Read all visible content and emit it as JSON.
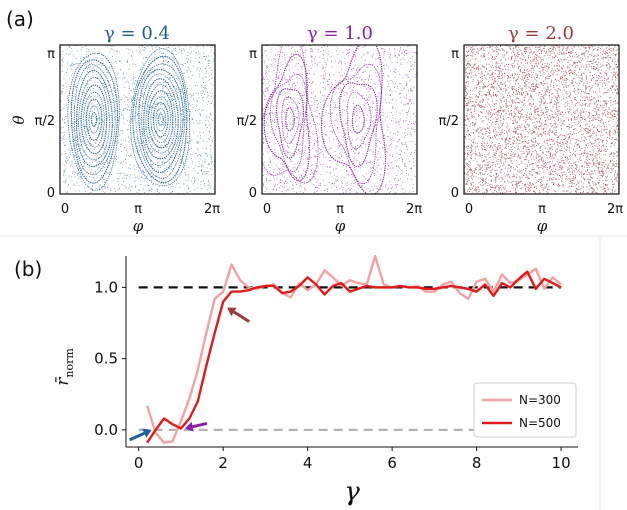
{
  "figure": {
    "panel_a_label": "(a)",
    "panel_b_label": "(b)"
  },
  "chart_data": [
    {
      "type": "scatter",
      "title": "γ = 0.4",
      "xlabel": "φ",
      "ylabel": "θ",
      "xticks": [
        "0",
        "π",
        "2π"
      ],
      "yticks": [
        "0",
        "π/2",
        "π"
      ],
      "xlim": [
        0,
        6.283
      ],
      "ylim": [
        0,
        3.1416
      ],
      "color": "#1f5f96",
      "gamma": 0.4,
      "regime": "regular orbits (islands around two fixed points)"
    },
    {
      "type": "scatter",
      "title": "γ = 1.0",
      "xlabel": "φ",
      "xticks": [
        "0",
        "π",
        "2π"
      ],
      "yticks": [
        "0",
        "π/2",
        "π"
      ],
      "xlim": [
        0,
        6.283
      ],
      "ylim": [
        0,
        3.1416
      ],
      "color": "#8a1fa8",
      "gamma": 1.0,
      "regime": "mixed phase space"
    },
    {
      "type": "scatter",
      "title": "γ = 2.0",
      "xlabel": "φ",
      "xticks": [
        "0",
        "π",
        "2π"
      ],
      "yticks": [
        "0",
        "π/2",
        "π"
      ],
      "xlim": [
        0,
        6.283
      ],
      "ylim": [
        0,
        3.1416
      ],
      "color": "#9c3a3a",
      "gamma": 2.0,
      "regime": "chaotic"
    },
    {
      "type": "line",
      "xlabel": "γ",
      "ylabel": "r̄_norm",
      "xlim": [
        -0.3,
        10.4
      ],
      "ylim": [
        -0.12,
        1.22
      ],
      "xticks": [
        0,
        2,
        4,
        6,
        8,
        10
      ],
      "yticks": [
        0.0,
        0.5,
        1.0
      ],
      "legend_position": "lower-right",
      "series": [
        {
          "name": "N=300",
          "color": "#f4a1a1",
          "x": [
            0.2,
            0.4,
            0.6,
            0.8,
            1.0,
            1.2,
            1.4,
            1.6,
            1.8,
            2.0,
            2.2,
            2.4,
            2.6,
            2.8,
            3.0,
            3.2,
            3.4,
            3.6,
            3.8,
            4.0,
            4.2,
            4.4,
            4.6,
            4.8,
            5.0,
            5.2,
            5.4,
            5.6,
            5.8,
            6.0,
            6.2,
            6.4,
            6.6,
            6.8,
            7.0,
            7.2,
            7.4,
            7.6,
            7.8,
            8.0,
            8.2,
            8.4,
            8.6,
            8.8,
            9.0,
            9.2,
            9.4,
            9.6,
            9.8,
            10.0
          ],
          "y": [
            0.17,
            -0.02,
            -0.09,
            -0.08,
            0.06,
            0.22,
            0.42,
            0.68,
            0.92,
            0.97,
            1.16,
            1.05,
            1.0,
            0.99,
            1.01,
            1.02,
            0.96,
            0.93,
            1.03,
            0.98,
            1.02,
            1.12,
            1.07,
            1.01,
            1.05,
            1.03,
            1.02,
            1.22,
            1.02,
            1.0,
            1.01,
            1.0,
            1.01,
            0.97,
            0.97,
            1.02,
            1.04,
            0.96,
            0.92,
            1.04,
            1.06,
            0.97,
            1.09,
            1.03,
            1.05,
            1.09,
            1.13,
            0.99,
            1.07,
            1.02
          ]
        },
        {
          "name": "N=500",
          "color": "#e01b1b",
          "x": [
            0.2,
            0.4,
            0.6,
            0.8,
            1.0,
            1.2,
            1.4,
            1.6,
            1.8,
            2.0,
            2.2,
            2.4,
            2.6,
            2.8,
            3.0,
            3.2,
            3.4,
            3.6,
            3.8,
            4.0,
            4.2,
            4.4,
            4.6,
            4.8,
            5.0,
            5.2,
            5.4,
            5.6,
            5.8,
            6.0,
            6.2,
            6.4,
            6.6,
            6.8,
            7.0,
            7.2,
            7.4,
            7.6,
            7.8,
            8.0,
            8.2,
            8.4,
            8.6,
            8.8,
            9.0,
            9.2,
            9.4,
            9.6,
            9.8,
            10.0
          ],
          "y": [
            -0.09,
            0.0,
            0.08,
            0.04,
            0.01,
            0.08,
            0.2,
            0.45,
            0.68,
            0.9,
            0.97,
            0.97,
            0.98,
            1.0,
            1.01,
            1.01,
            0.96,
            0.97,
            1.01,
            1.07,
            1.02,
            0.95,
            1.01,
            1.03,
            0.97,
            0.99,
            1.01,
            1.0,
            1.0,
            1.0,
            1.01,
            1.0,
            1.0,
            0.99,
            0.99,
            1.0,
            1.01,
            1.0,
            0.99,
            0.97,
            1.02,
            0.94,
            1.03,
            1.0,
            1.06,
            1.11,
            0.99,
            1.06,
            1.03,
            1.0
          ]
        }
      ],
      "reference_lines": [
        {
          "y": 1.0,
          "style": "dashed",
          "color": "#111111"
        },
        {
          "y": 0.0,
          "style": "dashed",
          "color": "#b3b3b3"
        }
      ],
      "arrows": [
        {
          "gamma": 0.4,
          "color": "#1f5f96"
        },
        {
          "gamma": 1.0,
          "color": "#8a1fa8"
        },
        {
          "gamma": 2.0,
          "color": "#9c3a3a"
        }
      ]
    }
  ]
}
